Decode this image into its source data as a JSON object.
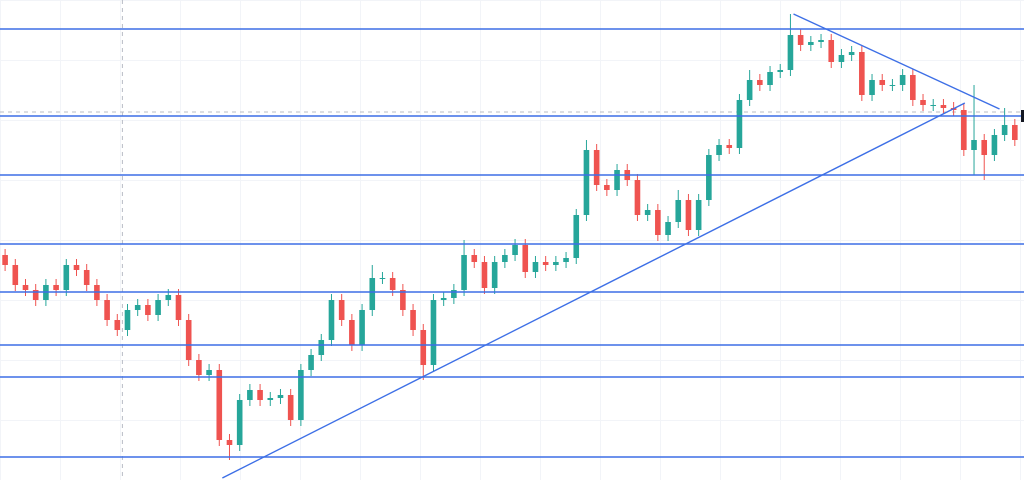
{
  "chart_data": {
    "type": "candlestick",
    "up_color": "#26a69a",
    "down_color": "#ef5350",
    "line_color": "#3d6fe6",
    "xlim": [
      -0.5,
      99.9
    ],
    "ylim": [
      0,
      480
    ],
    "open": [
      225,
      215,
      195,
      190,
      180,
      195,
      190,
      215,
      210,
      195,
      180,
      160,
      150,
      170,
      175,
      165,
      180,
      185,
      160,
      120,
      105,
      110,
      40,
      35,
      80,
      90,
      80,
      82,
      85,
      60,
      110,
      125,
      140,
      180,
      160,
      135,
      170,
      202,
      202,
      190,
      170,
      150,
      115,
      180,
      182,
      190,
      225,
      218,
      192,
      218,
      225,
      235,
      208,
      218,
      215,
      218,
      222,
      265,
      330,
      295,
      290,
      310,
      300,
      265,
      270,
      245,
      258,
      280,
      250,
      280,
      325,
      335,
      332,
      380,
      400,
      395,
      408,
      410,
      445,
      435,
      438,
      440,
      418,
      425,
      428,
      385,
      400,
      395,
      395,
      405,
      380,
      375,
      375,
      372,
      370,
      330,
      340,
      325,
      345,
      355
    ],
    "high": [
      231,
      221,
      201,
      196,
      201,
      201,
      221,
      221,
      216,
      201,
      186,
      166,
      176,
      181,
      181,
      186,
      191,
      191,
      166,
      126,
      116,
      116,
      46,
      86,
      96,
      96,
      88,
      91,
      91,
      116,
      131,
      146,
      186,
      186,
      166,
      176,
      215,
      208,
      208,
      196,
      176,
      156,
      186,
      188,
      196,
      240,
      231,
      224,
      224,
      231,
      241,
      241,
      224,
      224,
      224,
      228,
      271,
      340,
      336,
      301,
      316,
      316,
      306,
      276,
      276,
      264,
      290,
      286,
      286,
      331,
      341,
      341,
      386,
      410,
      406,
      414,
      416,
      466,
      451,
      444,
      446,
      446,
      431,
      434,
      434,
      406,
      406,
      401,
      411,
      411,
      386,
      381,
      381,
      378,
      376,
      395,
      346,
      351,
      372,
      361
    ],
    "low": [
      209,
      189,
      184,
      174,
      174,
      184,
      184,
      204,
      189,
      174,
      154,
      144,
      144,
      164,
      159,
      159,
      174,
      154,
      114,
      99,
      99,
      34,
      20,
      29,
      74,
      74,
      74,
      76,
      54,
      54,
      104,
      119,
      134,
      154,
      129,
      129,
      164,
      196,
      184,
      164,
      144,
      100,
      109,
      174,
      176,
      184,
      212,
      186,
      186,
      212,
      219,
      202,
      202,
      209,
      209,
      212,
      216,
      259,
      289,
      284,
      284,
      294,
      259,
      259,
      239,
      239,
      252,
      244,
      244,
      274,
      319,
      326,
      326,
      374,
      389,
      389,
      402,
      404,
      429,
      429,
      432,
      412,
      412,
      419,
      379,
      379,
      389,
      389,
      389,
      374,
      369,
      369,
      366,
      364,
      324,
      305,
      300,
      319,
      339,
      334
    ],
    "close": [
      215,
      195,
      190,
      180,
      195,
      190,
      215,
      210,
      195,
      180,
      160,
      150,
      170,
      175,
      165,
      180,
      185,
      160,
      120,
      105,
      110,
      40,
      35,
      80,
      90,
      80,
      82,
      85,
      60,
      110,
      125,
      140,
      180,
      160,
      135,
      170,
      202,
      202,
      190,
      170,
      150,
      115,
      180,
      182,
      190,
      225,
      218,
      192,
      218,
      225,
      235,
      208,
      218,
      215,
      218,
      222,
      265,
      330,
      295,
      290,
      310,
      300,
      265,
      270,
      245,
      258,
      280,
      250,
      280,
      325,
      335,
      332,
      380,
      400,
      395,
      408,
      410,
      445,
      435,
      438,
      440,
      418,
      425,
      428,
      385,
      400,
      395,
      395,
      405,
      380,
      375,
      375,
      372,
      370,
      330,
      340,
      325,
      345,
      355,
      340
    ],
    "levels": [
      451,
      364,
      305,
      236,
      188,
      135,
      103,
      23
    ],
    "trendlines": [
      {
        "x": [
          21.3,
          94.1
        ],
        "y": [
          2,
          377
        ]
      },
      {
        "x": [
          77.3,
          97.5
        ],
        "y": [
          466,
          371
        ]
      }
    ],
    "crosshair": {
      "x": 11.5,
      "y": 368
    }
  }
}
